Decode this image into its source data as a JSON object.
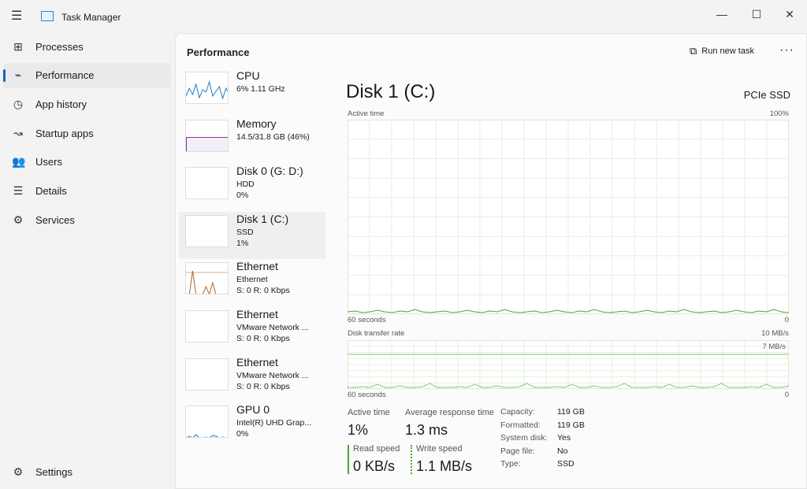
{
  "app": {
    "title": "Task Manager"
  },
  "window": {
    "minimize": "—",
    "maximize": "☐",
    "close": "✕"
  },
  "sidebar": {
    "items": [
      {
        "label": "Processes",
        "icon": "processes-icon",
        "glyph": "⊞"
      },
      {
        "label": "Performance",
        "icon": "performance-icon",
        "glyph": "⌁",
        "selected": true
      },
      {
        "label": "App history",
        "icon": "history-icon",
        "glyph": "◷"
      },
      {
        "label": "Startup apps",
        "icon": "startup-icon",
        "glyph": "↝"
      },
      {
        "label": "Users",
        "icon": "users-icon",
        "glyph": "👥"
      },
      {
        "label": "Details",
        "icon": "details-icon",
        "glyph": "☰"
      },
      {
        "label": "Services",
        "icon": "services-icon",
        "glyph": "⚙"
      }
    ],
    "settings": "Settings"
  },
  "header": {
    "title": "Performance",
    "run_new_task": "Run new task",
    "more": "···"
  },
  "resources": [
    {
      "name": "CPU",
      "line2": "6% 1.11 GHz",
      "line3": "",
      "color": "#1a7fc4"
    },
    {
      "name": "Memory",
      "line2": "14.5/31.8 GB (46%)",
      "line3": "",
      "color": "#8b3a9a"
    },
    {
      "name": "Disk 0 (G: D:)",
      "line2": "HDD",
      "line3": "0%",
      "color": "#4da82b"
    },
    {
      "name": "Disk 1 (C:)",
      "line2": "SSD",
      "line3": "1%",
      "color": "#4da82b",
      "selected": true
    },
    {
      "name": "Ethernet",
      "line2": "Ethernet",
      "line3": "S: 0 R: 0 Kbps",
      "color": "#b5651d"
    },
    {
      "name": "Ethernet",
      "line2": "VMware Network ...",
      "line3": "S: 0 R: 0 Kbps",
      "color": "#b5651d"
    },
    {
      "name": "Ethernet",
      "line2": "VMware Network ...",
      "line3": "S: 0 R: 0 Kbps",
      "color": "#b5651d"
    },
    {
      "name": "GPU 0",
      "line2": "Intel(R) UHD Grap...",
      "line3": "0%",
      "color": "#1a7fc4"
    }
  ],
  "detail": {
    "title": "Disk 1 (C:)",
    "type": "PCIe SSD",
    "graph1": {
      "label": "Active time",
      "max": "100%",
      "xlabel": "60 seconds",
      "min": "0"
    },
    "graph2": {
      "label": "Disk transfer rate",
      "max": "10 MB/s",
      "mark": "7 MB/s",
      "xlabel": "60 seconds",
      "min": "0"
    },
    "stats": {
      "active_time_label": "Active time",
      "active_time": "1%",
      "avg_resp_label": "Average response time",
      "avg_resp": "1.3 ms",
      "read_label": "Read speed",
      "read": "0 KB/s",
      "write_label": "Write speed",
      "write": "1.1 MB/s"
    },
    "props": [
      {
        "k": "Capacity:",
        "v": "119 GB"
      },
      {
        "k": "Formatted:",
        "v": "119 GB"
      },
      {
        "k": "System disk:",
        "v": "Yes"
      },
      {
        "k": "Page file:",
        "v": "No"
      },
      {
        "k": "Type:",
        "v": "SSD"
      }
    ],
    "accent": "#4da82b"
  }
}
